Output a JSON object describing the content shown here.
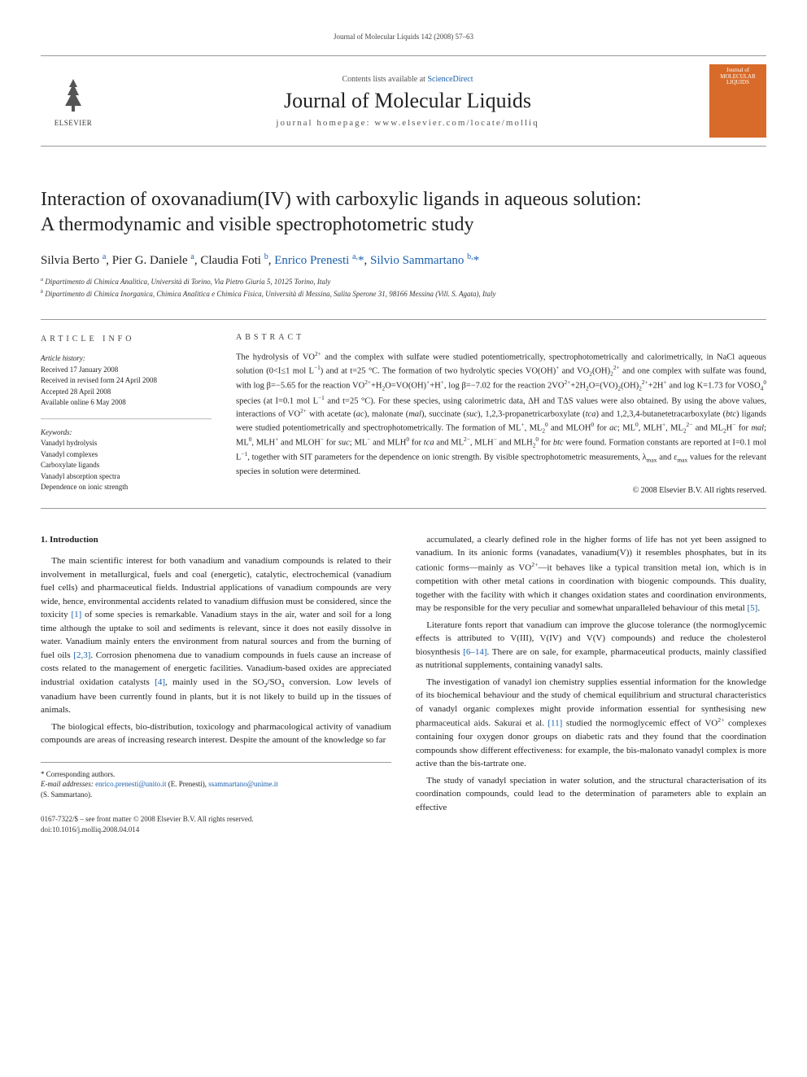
{
  "running_header": "Journal of Molecular Liquids 142 (2008) 57–63",
  "masthead": {
    "publisher_name": "ELSEVIER",
    "contents_label": "Contents lists available at",
    "contents_link": "ScienceDirect",
    "journal_name": "Journal of Molecular Liquids",
    "homepage_label": "journal homepage: www.elsevier.com/locate/molliq",
    "cover_label_1": "Journal of",
    "cover_label_2": "MOLECULAR",
    "cover_label_3": "LIQUIDS"
  },
  "title_line1": "Interaction of oxovanadium(IV) with carboxylic ligands in aqueous solution:",
  "title_line2": "A thermodynamic and visible spectrophotometric study",
  "authors_html": "Silvia Berto <sup class='affil-sup'>a</sup>, Pier G. Daniele <sup class='affil-sup'>a</sup>, Claudia Foti <sup class='affil-sup'>b</sup>, <span class='author-link'>Enrico Prenesti</span> <sup class='affil-sup'>a,</sup><span class='corr-mark'>*</span>, <span class='author-link'>Silvio Sammartano</span> <sup class='affil-sup'>b,</sup><span class='corr-mark'>*</span>",
  "affiliations": {
    "a": "Dipartimento di Chimica Analitica, Università di Torino, Via Pietro Giuria 5, 10125 Torino, Italy",
    "b": "Dipartimento di Chimica Inorganica, Chimica Analitica e Chimica Fisica, Università di Messina, Salita Sperone 31, 98166 Messina (Vill. S. Agata), Italy"
  },
  "article_info": {
    "label": "ARTICLE INFO",
    "history_label": "Article history:",
    "received": "Received 17 January 2008",
    "revised": "Received in revised form 24 April 2008",
    "accepted": "Accepted 28 April 2008",
    "online": "Available online 6 May 2008",
    "keywords_label": "Keywords:",
    "keywords": [
      "Vanadyl hydrolysis",
      "Vanadyl complexes",
      "Carboxylate ligands",
      "Vanadyl absorption spectra",
      "Dependence on ionic strength"
    ]
  },
  "abstract": {
    "label": "ABSTRACT",
    "text_html": "The hydrolysis of VO<sup>2+</sup> and the complex with sulfate were studied potentiometrically, spectrophotometrically and calorimetrically, in NaCl aqueous solution (0&lt;I≤1 mol L<sup>−1</sup>) and at t=25 °C. The formation of two hydrolytic species VO(OH)<sup>+</sup> and VO<sub>2</sub>(OH)<sub>2</sub><sup>2+</sup> and one complex with sulfate was found, with log β=−5.65 for the reaction VO<sup>2+</sup>+H<sub>2</sub>O=VO(OH)<sup>+</sup>+H<sup>+</sup>, log β=−7.02 for the reaction 2VO<sup>2+</sup>+2H<sub>2</sub>O=(VO)<sub>2</sub>(OH)<sub>2</sub><sup>2+</sup>+2H<sup>+</sup> and log K=1.73 for VOSO<sub>4</sub><sup>0</sup> species (at I=0.1 mol L<sup>−1</sup> and t=25 °C). For these species, using calorimetric data, ΔH and TΔS values were also obtained. By using the above values, interactions of VO<sup>2+</sup> with acetate (<i>ac</i>), malonate (<i>mal</i>), succinate (<i>suc</i>), 1,2,3-propanetricarboxylate (<i>tca</i>) and 1,2,3,4-butanetetracarboxylate (<i>btc</i>) ligands were studied potentiometrically and spectrophotometrically. The formation of ML<sup>+</sup>, ML<sub>2</sub><sup>0</sup> and MLOH<sup>0</sup> for <i>ac</i>; ML<sup>0</sup>, MLH<sup>+</sup>, ML<sub>2</sub><sup>2−</sup> and ML<sub>2</sub>H<sup>−</sup> for <i>mal</i>; ML<sup>0</sup>, MLH<sup>+</sup> and MLOH<sup>−</sup> for <i>suc</i>; ML<sup>−</sup> and MLH<sup>0</sup> for <i>tca</i> and ML<sup>2−</sup>, MLH<sup>−</sup> and MLH<sub>2</sub><sup>0</sup> for <i>btc</i> were found. Formation constants are reported at I=0.1 mol L<sup>−1</sup>, together with SIT parameters for the dependence on ionic strength. By visible spectrophotometric measurements, λ<sub>max</sub> and ε<sub>max</sub> values for the relevant species in solution were determined.",
    "copyright": "© 2008 Elsevier B.V. All rights reserved."
  },
  "body": {
    "section1_heading": "1. Introduction",
    "left_paras_html": [
      "The main scientific interest for both vanadium and vanadium compounds is related to their involvement in metallurgical, fuels and coal (energetic), catalytic, electrochemical (vanadium fuel cells) and pharmaceutical fields. Industrial applications of vanadium compounds are very wide, hence, environmental accidents related to vanadium diffusion must be considered, since the toxicity <span class='cite'>[1]</span> of some species is remarkable. Vanadium stays in the air, water and soil for a long time although the uptake to soil and sediments is relevant, since it does not easily dissolve in water. Vanadium mainly enters the environment from natural sources and from the burning of fuel oils <span class='cite'>[2,3]</span>. Corrosion phenomena due to vanadium compounds in fuels cause an increase of costs related to the management of energetic facilities. Vanadium-based oxides are appreciated industrial oxidation catalysts <span class='cite'>[4]</span>, mainly used in the SO<sub>2</sub>/SO<sub>3</sub> conversion. Low levels of vanadium have been currently found in plants, but it is not likely to build up in the tissues of animals.",
      "The biological effects, bio-distribution, toxicology and pharmacological activity of vanadium compounds are areas of increasing research interest. Despite the amount of the knowledge so far"
    ],
    "right_paras_html": [
      "accumulated, a clearly defined role in the higher forms of life has not yet been assigned to vanadium. In its anionic forms (vanadates, vanadium(V)) it resembles phosphates, but in its cationic forms—mainly as VO<sup>2+</sup>—it behaves like a typical transition metal ion, which is in competition with other metal cations in coordination with biogenic compounds. This duality, together with the facility with which it changes oxidation states and coordination environments, may be responsible for the very peculiar and somewhat unparalleled behaviour of this metal <span class='cite'>[5]</span>.",
      "Literature fonts report that vanadium can improve the glucose tolerance (the normoglycemic effects is attributed to V(III), V(IV) and V(V) compounds) and reduce the cholesterol biosynthesis <span class='cite'>[6–14]</span>. There are on sale, for example, pharmaceutical products, mainly classified as nutritional supplements, containing vanadyl salts.",
      "The investigation of vanadyl ion chemistry supplies essential information for the knowledge of its biochemical behaviour and the study of chemical equilibrium and structural characteristics of vanadyl organic complexes might provide information essential for synthesising new pharmaceutical aids. Sakurai et al. <span class='cite'>[11]</span> studied the normoglycemic effect of VO<sup>2+</sup> complexes containing four oxygen donor groups on diabetic rats and they found that the coordination compounds show different effectiveness: for example, the bis-malonato vanadyl complex is more active than the bis-tartrate one.",
      "The study of vanadyl speciation in water solution, and the structural characterisation of its coordination compounds, could lead to the determination of parameters able to explain an effective"
    ]
  },
  "footnotes": {
    "corr_label": "* Corresponding authors.",
    "email_label": "E-mail addresses:",
    "email1": "enrico.prenesti@unito.it",
    "email1_name": "(E. Prenesti),",
    "email2": "ssammartano@unime.it",
    "email2_name": "(S. Sammartano)."
  },
  "footer": {
    "issn_line": "0167-7322/$ – see front matter © 2008 Elsevier B.V. All rights reserved.",
    "doi_line": "doi:10.1016/j.molliq.2008.04.014"
  },
  "colors": {
    "link": "#1b5fad",
    "rule": "#999999",
    "cover_bg": "#d86b2a",
    "text": "#222222"
  }
}
